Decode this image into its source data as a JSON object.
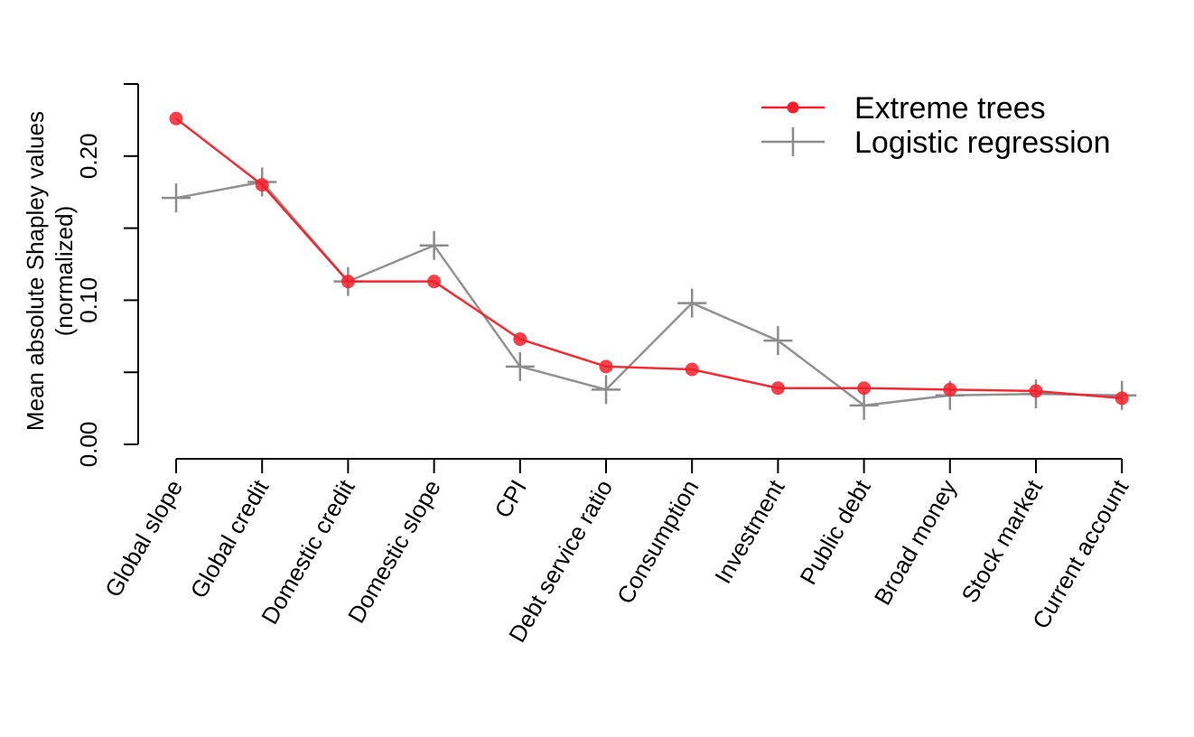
{
  "chart_data": {
    "type": "line",
    "title": "",
    "xlabel": "",
    "ylabel_lines": [
      "Mean absolute Shapley values",
      "(normalized)"
    ],
    "categories": [
      "Global slope",
      "Global credit",
      "Domestic credit",
      "Domestic slope",
      "CPI",
      "Debt service ratio",
      "Consumption",
      "Investment",
      "Public debt",
      "Broad money",
      "Stock market",
      "Current account"
    ],
    "ylim": [
      0,
      0.25
    ],
    "yticks": [
      0.0,
      0.05,
      0.1,
      0.15,
      0.2,
      0.25
    ],
    "ytick_labels": [
      "0.00",
      "",
      "0.10",
      "",
      "0.20",
      ""
    ],
    "grid": false,
    "legend_position": "top-right",
    "series": [
      {
        "name": "Extreme trees",
        "color": "#f2202a",
        "marker": "circle",
        "values": [
          0.226,
          0.18,
          0.113,
          0.113,
          0.073,
          0.054,
          0.052,
          0.039,
          0.039,
          0.038,
          0.037,
          0.032
        ]
      },
      {
        "name": "Logistic regression",
        "color": "#8c8c8c",
        "marker": "plus",
        "values": [
          0.171,
          0.182,
          0.113,
          0.138,
          0.054,
          0.038,
          0.098,
          0.072,
          0.027,
          0.034,
          0.035,
          0.034
        ]
      }
    ]
  }
}
